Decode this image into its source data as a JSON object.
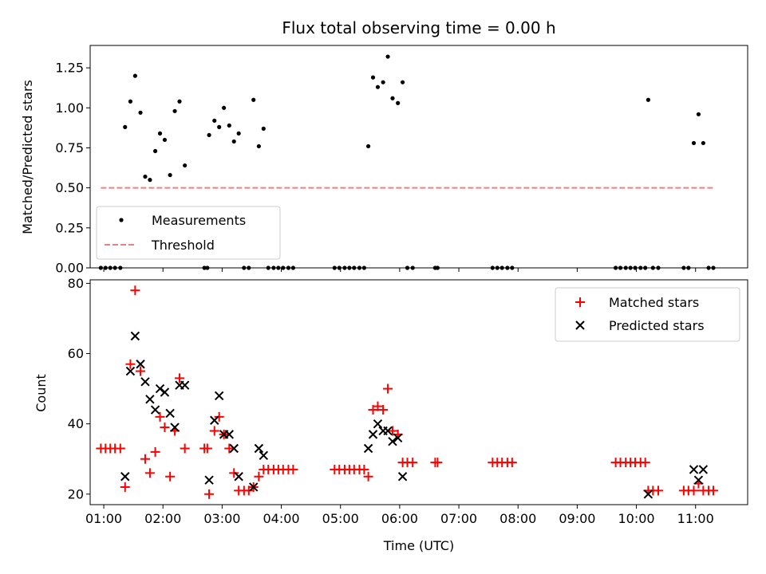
{
  "colors": {
    "measurement": "#000000",
    "threshold": "#f08080",
    "matched": "#ff0000",
    "predicted": "#000000"
  },
  "chart_data": [
    {
      "type": "scatter",
      "title": "Flux total observing time = 0.00 h",
      "xlabel": "",
      "ylabel": "Matched/Predicted stars",
      "xlim": [
        0.77,
        11.88
      ],
      "ylim": [
        0,
        1.39
      ],
      "yticks": [
        0.0,
        0.25,
        0.5,
        0.75,
        1.0,
        1.25
      ],
      "yticklabels": [
        "0.00",
        "0.25",
        "0.50",
        "0.75",
        "1.00",
        "1.25"
      ],
      "grid": false,
      "legend": {
        "position": "lower-left"
      },
      "series": [
        {
          "name": "Measurements",
          "marker": "dot",
          "points": [
            [
              0.95,
              0
            ],
            [
              1.03,
              0
            ],
            [
              1.11,
              0
            ],
            [
              1.19,
              0
            ],
            [
              1.28,
              0
            ],
            [
              1.36,
              0.88
            ],
            [
              1.45,
              1.04
            ],
            [
              1.53,
              1.2
            ],
            [
              1.62,
              0.97
            ],
            [
              1.7,
              0.57
            ],
            [
              1.78,
              0.55
            ],
            [
              1.87,
              0.73
            ],
            [
              1.95,
              0.84
            ],
            [
              2.03,
              0.8
            ],
            [
              2.12,
              0.58
            ],
            [
              2.2,
              0.98
            ],
            [
              2.28,
              1.04
            ],
            [
              2.37,
              0.64
            ],
            [
              2.7,
              0
            ],
            [
              2.75,
              0
            ],
            [
              2.78,
              0.83
            ],
            [
              2.87,
              0.92
            ],
            [
              2.95,
              0.88
            ],
            [
              3.03,
              1.0
            ],
            [
              3.12,
              0.89
            ],
            [
              3.2,
              0.79
            ],
            [
              3.28,
              0.84
            ],
            [
              3.37,
              0
            ],
            [
              3.45,
              0
            ],
            [
              3.53,
              1.05
            ],
            [
              3.62,
              0.76
            ],
            [
              3.7,
              0.87
            ],
            [
              3.78,
              0
            ],
            [
              3.87,
              0
            ],
            [
              3.95,
              0
            ],
            [
              4.03,
              0
            ],
            [
              4.12,
              0
            ],
            [
              4.2,
              0
            ],
            [
              4.9,
              0
            ],
            [
              4.98,
              0
            ],
            [
              5.07,
              0
            ],
            [
              5.15,
              0
            ],
            [
              5.23,
              0
            ],
            [
              5.32,
              0
            ],
            [
              5.4,
              0
            ],
            [
              5.47,
              0.76
            ],
            [
              5.55,
              1.19
            ],
            [
              5.63,
              1.13
            ],
            [
              5.72,
              1.16
            ],
            [
              5.8,
              1.32
            ],
            [
              5.88,
              1.06
            ],
            [
              5.97,
              1.03
            ],
            [
              6.05,
              1.16
            ],
            [
              6.13,
              0
            ],
            [
              6.22,
              0
            ],
            [
              6.6,
              0
            ],
            [
              6.64,
              0
            ],
            [
              7.57,
              0
            ],
            [
              7.65,
              0
            ],
            [
              7.73,
              0
            ],
            [
              7.82,
              0
            ],
            [
              7.9,
              0
            ],
            [
              9.65,
              0
            ],
            [
              9.73,
              0
            ],
            [
              9.82,
              0
            ],
            [
              9.9,
              0
            ],
            [
              9.98,
              0
            ],
            [
              10.07,
              0
            ],
            [
              10.15,
              0
            ],
            [
              10.2,
              1.05
            ],
            [
              10.28,
              0
            ],
            [
              10.37,
              0
            ],
            [
              10.8,
              0
            ],
            [
              10.88,
              0
            ],
            [
              10.97,
              0.78
            ],
            [
              11.05,
              0.96
            ],
            [
              11.13,
              0.78
            ],
            [
              11.22,
              0
            ],
            [
              11.3,
              0
            ]
          ]
        },
        {
          "name": "Threshold",
          "style": "dashed-line",
          "points": [
            [
              0.95,
              0.5
            ],
            [
              11.3,
              0.5
            ]
          ]
        }
      ]
    },
    {
      "type": "scatter",
      "title": "",
      "xlabel": "Time (UTC)",
      "ylabel": "Count",
      "xlim": [
        0.77,
        11.88
      ],
      "ylim": [
        17,
        81
      ],
      "xticks": [
        1,
        2,
        3,
        4,
        5,
        6,
        7,
        8,
        9,
        10,
        11
      ],
      "xticklabels": [
        "01:00",
        "02:00",
        "03:00",
        "04:00",
        "05:00",
        "06:00",
        "07:00",
        "08:00",
        "09:00",
        "10:00",
        "11:00"
      ],
      "yticks": [
        20,
        40,
        60,
        80
      ],
      "yticklabels": [
        "20",
        "40",
        "60",
        "80"
      ],
      "grid": false,
      "legend": {
        "position": "top-right"
      },
      "series": [
        {
          "name": "Matched stars",
          "marker": "plus",
          "points": [
            [
              0.95,
              33
            ],
            [
              1.03,
              33
            ],
            [
              1.11,
              33
            ],
            [
              1.19,
              33
            ],
            [
              1.28,
              33
            ],
            [
              1.36,
              22
            ],
            [
              1.45,
              57
            ],
            [
              1.53,
              78
            ],
            [
              1.62,
              55
            ],
            [
              1.7,
              30
            ],
            [
              1.78,
              26
            ],
            [
              1.87,
              32
            ],
            [
              1.95,
              42
            ],
            [
              2.03,
              39
            ],
            [
              2.12,
              25
            ],
            [
              2.2,
              38
            ],
            [
              2.28,
              53
            ],
            [
              2.37,
              33
            ],
            [
              2.7,
              33
            ],
            [
              2.75,
              33
            ],
            [
              2.78,
              20
            ],
            [
              2.87,
              38
            ],
            [
              2.95,
              42
            ],
            [
              3.03,
              37
            ],
            [
              3.12,
              33
            ],
            [
              3.2,
              26
            ],
            [
              3.28,
              21
            ],
            [
              3.37,
              21
            ],
            [
              3.45,
              21
            ],
            [
              3.53,
              22
            ],
            [
              3.62,
              25
            ],
            [
              3.7,
              27
            ],
            [
              3.78,
              27
            ],
            [
              3.87,
              27
            ],
            [
              3.95,
              27
            ],
            [
              4.03,
              27
            ],
            [
              4.12,
              27
            ],
            [
              4.2,
              27
            ],
            [
              4.9,
              27
            ],
            [
              4.98,
              27
            ],
            [
              5.07,
              27
            ],
            [
              5.15,
              27
            ],
            [
              5.23,
              27
            ],
            [
              5.32,
              27
            ],
            [
              5.4,
              27
            ],
            [
              5.47,
              25
            ],
            [
              5.55,
              44
            ],
            [
              5.63,
              45
            ],
            [
              5.72,
              44
            ],
            [
              5.8,
              50
            ],
            [
              5.88,
              38
            ],
            [
              5.97,
              37
            ],
            [
              6.05,
              29
            ],
            [
              6.13,
              29
            ],
            [
              6.22,
              29
            ],
            [
              6.6,
              29
            ],
            [
              6.64,
              29
            ],
            [
              7.57,
              29
            ],
            [
              7.65,
              29
            ],
            [
              7.73,
              29
            ],
            [
              7.82,
              29
            ],
            [
              7.9,
              29
            ],
            [
              9.65,
              29
            ],
            [
              9.73,
              29
            ],
            [
              9.82,
              29
            ],
            [
              9.9,
              29
            ],
            [
              9.98,
              29
            ],
            [
              10.07,
              29
            ],
            [
              10.15,
              29
            ],
            [
              10.2,
              21
            ],
            [
              10.28,
              21
            ],
            [
              10.37,
              21
            ],
            [
              10.8,
              21
            ],
            [
              10.88,
              21
            ],
            [
              10.97,
              21
            ],
            [
              11.05,
              23
            ],
            [
              11.13,
              21
            ],
            [
              11.22,
              21
            ],
            [
              11.3,
              21
            ]
          ]
        },
        {
          "name": "Predicted stars",
          "marker": "cross",
          "points": [
            [
              1.36,
              25
            ],
            [
              1.45,
              55
            ],
            [
              1.53,
              65
            ],
            [
              1.62,
              57
            ],
            [
              1.7,
              52
            ],
            [
              1.78,
              47
            ],
            [
              1.87,
              44
            ],
            [
              1.95,
              50
            ],
            [
              2.03,
              49
            ],
            [
              2.12,
              43
            ],
            [
              2.2,
              39
            ],
            [
              2.28,
              51
            ],
            [
              2.37,
              51
            ],
            [
              2.78,
              24
            ],
            [
              2.87,
              41
            ],
            [
              2.95,
              48
            ],
            [
              3.03,
              37
            ],
            [
              3.12,
              37
            ],
            [
              3.2,
              33
            ],
            [
              3.28,
              25
            ],
            [
              3.53,
              22
            ],
            [
              3.62,
              33
            ],
            [
              3.7,
              31
            ],
            [
              5.47,
              33
            ],
            [
              5.55,
              37
            ],
            [
              5.63,
              40
            ],
            [
              5.72,
              38
            ],
            [
              5.8,
              38
            ],
            [
              5.88,
              35
            ],
            [
              5.97,
              36
            ],
            [
              6.05,
              25
            ],
            [
              10.2,
              20
            ],
            [
              10.97,
              27
            ],
            [
              11.05,
              24
            ],
            [
              11.13,
              27
            ]
          ]
        }
      ]
    }
  ]
}
